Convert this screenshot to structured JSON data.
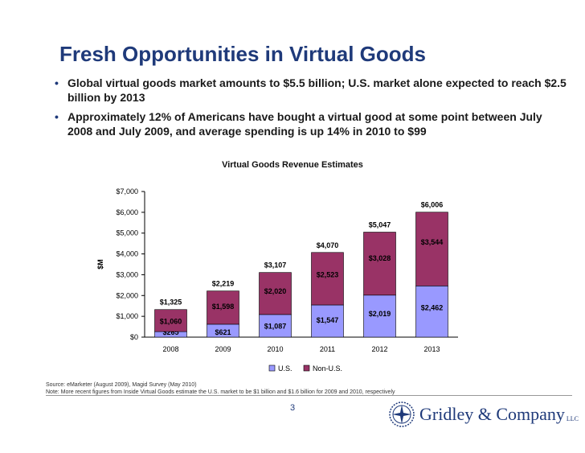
{
  "slide": {
    "title": "Fresh Opportunities in Virtual Goods",
    "bullets": [
      "Global virtual goods market amounts to $5.5 billion; U.S. market alone expected to reach $2.5 billion by 2013",
      "Approximately 12% of Americans have bought a virtual good at some point between July 2008 and July 2009, and average spending is up 14% in 2010 to $99"
    ],
    "source": "Source: eMarketer (August 2009), Magid Survey (May 2010)",
    "note": "Note: More recent figures from Inside Virtual Goods estimate the U.S. market to be $1 billion and $1.6 billion for 2009 and 2010, respectively",
    "page_number": "3",
    "logo_text": "Gridley & Company",
    "logo_suffix": "LLC"
  },
  "colors": {
    "title": "#1f3a7a",
    "us_series": "#9999ff",
    "non_us_series": "#993366"
  },
  "chart_data": {
    "type": "bar",
    "stacked": true,
    "title": "Virtual Goods Revenue Estimates",
    "ylabel": "$M",
    "xlabel": "",
    "ylim": [
      0,
      7000
    ],
    "yticks": [
      0,
      1000,
      2000,
      3000,
      4000,
      5000,
      6000,
      7000
    ],
    "ytick_labels": [
      "$0",
      "$1,000",
      "$2,000",
      "$3,000",
      "$4,000",
      "$5,000",
      "$6,000",
      "$7,000"
    ],
    "categories": [
      "2008",
      "2009",
      "2010",
      "2011",
      "2012",
      "2013"
    ],
    "series": [
      {
        "name": "U.S.",
        "values": [
          265,
          621,
          1087,
          1547,
          2019,
          2462
        ],
        "labels": [
          "$265",
          "$621",
          "$1,087",
          "$1,547",
          "$2,019",
          "$2,462"
        ]
      },
      {
        "name": "Non-U.S.",
        "values": [
          1060,
          1598,
          2020,
          2523,
          3028,
          3544
        ],
        "labels": [
          "$1,060",
          "$1,598",
          "$2,020",
          "$2,523",
          "$3,028",
          "$3,544"
        ]
      }
    ],
    "totals": [
      1325,
      2219,
      3107,
      4070,
      5047,
      6006
    ],
    "total_labels": [
      "$1,325",
      "$2,219",
      "$3,107",
      "$4,070",
      "$5,047",
      "$6,006"
    ],
    "legend_position": "bottom",
    "grid": false
  }
}
